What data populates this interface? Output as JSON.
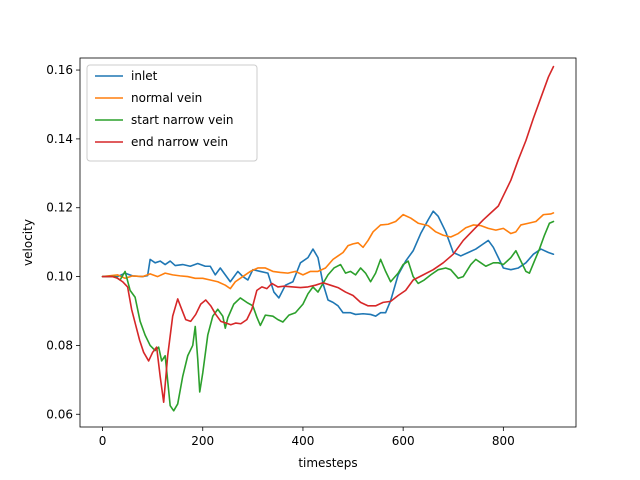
{
  "chart_data": {
    "type": "line",
    "title": "",
    "xlabel": "timesteps",
    "ylabel": "velocity",
    "xlim": [
      -45,
      945
    ],
    "ylim": [
      0.0563,
      0.1635
    ],
    "xticks": [
      0,
      200,
      400,
      600,
      800
    ],
    "xtick_labels": [
      "0",
      "200",
      "400",
      "600",
      "800"
    ],
    "yticks": [
      0.06,
      0.08,
      0.1,
      0.12,
      0.14,
      0.16
    ],
    "ytick_labels": [
      "0.06",
      "0.08",
      "0.10",
      "0.12",
      "0.14",
      "0.16"
    ],
    "grid": false,
    "legend": "top-left",
    "series": [
      {
        "name": "inlet",
        "color": "#1f77b4",
        "points": [
          [
            0,
            0.1
          ],
          [
            30,
            0.1
          ],
          [
            45,
            0.101
          ],
          [
            60,
            0.1002
          ],
          [
            80,
            0.1
          ],
          [
            90,
            0.1003
          ],
          [
            95,
            0.105
          ],
          [
            105,
            0.104
          ],
          [
            115,
            0.1045
          ],
          [
            125,
            0.1035
          ],
          [
            135,
            0.1045
          ],
          [
            145,
            0.1032
          ],
          [
            160,
            0.1035
          ],
          [
            175,
            0.103
          ],
          [
            190,
            0.1038
          ],
          [
            205,
            0.103
          ],
          [
            215,
            0.103
          ],
          [
            225,
            0.1005
          ],
          [
            235,
            0.1025
          ],
          [
            245,
            0.1005
          ],
          [
            255,
            0.0985
          ],
          [
            270,
            0.1015
          ],
          [
            280,
            0.1
          ],
          [
            290,
            0.099
          ],
          [
            300,
            0.102
          ],
          [
            315,
            0.1015
          ],
          [
            330,
            0.101
          ],
          [
            342,
            0.0955
          ],
          [
            352,
            0.0938
          ],
          [
            365,
            0.0975
          ],
          [
            380,
            0.0985
          ],
          [
            395,
            0.104
          ],
          [
            410,
            0.1055
          ],
          [
            420,
            0.108
          ],
          [
            430,
            0.1055
          ],
          [
            440,
            0.098
          ],
          [
            450,
            0.0932
          ],
          [
            460,
            0.0925
          ],
          [
            470,
            0.0915
          ],
          [
            480,
            0.0895
          ],
          [
            495,
            0.0895
          ],
          [
            505,
            0.089
          ],
          [
            520,
            0.0892
          ],
          [
            535,
            0.089
          ],
          [
            545,
            0.0885
          ],
          [
            555,
            0.0895
          ],
          [
            565,
            0.0895
          ],
          [
            575,
            0.093
          ],
          [
            590,
            0.1005
          ],
          [
            605,
            0.1045
          ],
          [
            620,
            0.1075
          ],
          [
            635,
            0.1125
          ],
          [
            650,
            0.1165
          ],
          [
            660,
            0.119
          ],
          [
            670,
            0.1175
          ],
          [
            685,
            0.113
          ],
          [
            700,
            0.107
          ],
          [
            715,
            0.106
          ],
          [
            730,
            0.107
          ],
          [
            745,
            0.108
          ],
          [
            760,
            0.1095
          ],
          [
            770,
            0.1105
          ],
          [
            780,
            0.1085
          ],
          [
            790,
            0.1055
          ],
          [
            800,
            0.1025
          ],
          [
            815,
            0.102
          ],
          [
            830,
            0.1025
          ],
          [
            845,
            0.104
          ],
          [
            860,
            0.1065
          ],
          [
            875,
            0.108
          ],
          [
            890,
            0.107
          ],
          [
            900,
            0.1065
          ]
        ]
      },
      {
        "name": "normal vein",
        "color": "#ff7f0e",
        "points": [
          [
            0,
            0.1
          ],
          [
            30,
            0.1005
          ],
          [
            45,
            0.0995
          ],
          [
            60,
            0.1002
          ],
          [
            80,
            0.1
          ],
          [
            95,
            0.1008
          ],
          [
            110,
            0.1
          ],
          [
            125,
            0.101
          ],
          [
            140,
            0.1005
          ],
          [
            155,
            0.1002
          ],
          [
            170,
            0.1
          ],
          [
            185,
            0.0995
          ],
          [
            200,
            0.0995
          ],
          [
            215,
            0.099
          ],
          [
            230,
            0.0985
          ],
          [
            245,
            0.0975
          ],
          [
            255,
            0.0965
          ],
          [
            265,
            0.0985
          ],
          [
            280,
            0.1
          ],
          [
            295,
            0.1015
          ],
          [
            310,
            0.1025
          ],
          [
            325,
            0.1025
          ],
          [
            340,
            0.1015
          ],
          [
            355,
            0.1012
          ],
          [
            370,
            0.101
          ],
          [
            385,
            0.1015
          ],
          [
            400,
            0.1005
          ],
          [
            415,
            0.1015
          ],
          [
            430,
            0.1015
          ],
          [
            445,
            0.1025
          ],
          [
            460,
            0.105
          ],
          [
            470,
            0.106
          ],
          [
            480,
            0.107
          ],
          [
            490,
            0.109
          ],
          [
            500,
            0.1095
          ],
          [
            510,
            0.1098
          ],
          [
            520,
            0.1085
          ],
          [
            530,
            0.1105
          ],
          [
            540,
            0.113
          ],
          [
            555,
            0.115
          ],
          [
            570,
            0.1152
          ],
          [
            585,
            0.116
          ],
          [
            600,
            0.118
          ],
          [
            615,
            0.117
          ],
          [
            630,
            0.1155
          ],
          [
            650,
            0.1148
          ],
          [
            665,
            0.113
          ],
          [
            680,
            0.112
          ],
          [
            695,
            0.1115
          ],
          [
            710,
            0.1125
          ],
          [
            725,
            0.1142
          ],
          [
            740,
            0.115
          ],
          [
            755,
            0.1148
          ],
          [
            770,
            0.114
          ],
          [
            785,
            0.1135
          ],
          [
            800,
            0.114
          ],
          [
            815,
            0.1125
          ],
          [
            825,
            0.113
          ],
          [
            835,
            0.115
          ],
          [
            850,
            0.1155
          ],
          [
            865,
            0.116
          ],
          [
            880,
            0.118
          ],
          [
            895,
            0.1182
          ],
          [
            900,
            0.1185
          ]
        ]
      },
      {
        "name": "start narrow vein",
        "color": "#2ca02c",
        "points": [
          [
            0,
            0.1
          ],
          [
            25,
            0.1
          ],
          [
            35,
            0.099
          ],
          [
            45,
            0.1015
          ],
          [
            55,
            0.096
          ],
          [
            65,
            0.094
          ],
          [
            75,
            0.087
          ],
          [
            85,
            0.083
          ],
          [
            95,
            0.08
          ],
          [
            105,
            0.0785
          ],
          [
            112,
            0.0795
          ],
          [
            118,
            0.0755
          ],
          [
            125,
            0.077
          ],
          [
            135,
            0.0625
          ],
          [
            142,
            0.061
          ],
          [
            150,
            0.063
          ],
          [
            160,
            0.071
          ],
          [
            170,
            0.077
          ],
          [
            180,
            0.08
          ],
          [
            185,
            0.0855
          ],
          [
            190,
            0.076
          ],
          [
            194,
            0.0665
          ],
          [
            200,
            0.072
          ],
          [
            210,
            0.083
          ],
          [
            220,
            0.0885
          ],
          [
            230,
            0.0905
          ],
          [
            240,
            0.0885
          ],
          [
            245,
            0.085
          ],
          [
            250,
            0.088
          ],
          [
            262,
            0.092
          ],
          [
            275,
            0.0938
          ],
          [
            288,
            0.0925
          ],
          [
            300,
            0.0915
          ],
          [
            308,
            0.0882
          ],
          [
            315,
            0.0858
          ],
          [
            325,
            0.0888
          ],
          [
            340,
            0.0885
          ],
          [
            350,
            0.0875
          ],
          [
            360,
            0.0868
          ],
          [
            372,
            0.0888
          ],
          [
            385,
            0.0895
          ],
          [
            400,
            0.092
          ],
          [
            410,
            0.095
          ],
          [
            420,
            0.097
          ],
          [
            430,
            0.0955
          ],
          [
            440,
            0.098
          ],
          [
            450,
            0.1005
          ],
          [
            462,
            0.1025
          ],
          [
            475,
            0.1035
          ],
          [
            485,
            0.101
          ],
          [
            495,
            0.1015
          ],
          [
            505,
            0.1005
          ],
          [
            515,
            0.1025
          ],
          [
            525,
            0.101
          ],
          [
            535,
            0.0985
          ],
          [
            545,
            0.101
          ],
          [
            555,
            0.105
          ],
          [
            565,
            0.1015
          ],
          [
            575,
            0.0985
          ],
          [
            590,
            0.101
          ],
          [
            600,
            0.1035
          ],
          [
            610,
            0.1045
          ],
          [
            620,
            0.1
          ],
          [
            630,
            0.098
          ],
          [
            642,
            0.099
          ],
          [
            655,
            0.1005
          ],
          [
            670,
            0.102
          ],
          [
            685,
            0.1025
          ],
          [
            695,
            0.102
          ],
          [
            710,
            0.0995
          ],
          [
            720,
            0.1
          ],
          [
            735,
            0.1035
          ],
          [
            745,
            0.105
          ],
          [
            755,
            0.104
          ],
          [
            765,
            0.103
          ],
          [
            780,
            0.104
          ],
          [
            790,
            0.104
          ],
          [
            800,
            0.1035
          ],
          [
            815,
            0.1055
          ],
          [
            825,
            0.1075
          ],
          [
            835,
            0.1045
          ],
          [
            845,
            0.1015
          ],
          [
            852,
            0.101
          ],
          [
            862,
            0.1045
          ],
          [
            872,
            0.108
          ],
          [
            882,
            0.112
          ],
          [
            892,
            0.1155
          ],
          [
            900,
            0.116
          ]
        ]
      },
      {
        "name": "end narrow vein",
        "color": "#d62728",
        "points": [
          [
            0,
            0.1
          ],
          [
            20,
            0.1
          ],
          [
            30,
            0.0995
          ],
          [
            40,
            0.0985
          ],
          [
            50,
            0.097
          ],
          [
            58,
            0.0905
          ],
          [
            66,
            0.086
          ],
          [
            74,
            0.0815
          ],
          [
            82,
            0.078
          ],
          [
            92,
            0.0755
          ],
          [
            100,
            0.078
          ],
          [
            108,
            0.0795
          ],
          [
            115,
            0.071
          ],
          [
            122,
            0.0635
          ],
          [
            130,
            0.077
          ],
          [
            140,
            0.0885
          ],
          [
            150,
            0.0935
          ],
          [
            158,
            0.0905
          ],
          [
            166,
            0.0875
          ],
          [
            176,
            0.087
          ],
          [
            186,
            0.089
          ],
          [
            196,
            0.092
          ],
          [
            206,
            0.0932
          ],
          [
            216,
            0.0915
          ],
          [
            226,
            0.089
          ],
          [
            236,
            0.087
          ],
          [
            246,
            0.0865
          ],
          [
            256,
            0.086
          ],
          [
            266,
            0.0865
          ],
          [
            276,
            0.0863
          ],
          [
            288,
            0.0875
          ],
          [
            298,
            0.0905
          ],
          [
            308,
            0.096
          ],
          [
            318,
            0.097
          ],
          [
            328,
            0.0965
          ],
          [
            338,
            0.098
          ],
          [
            350,
            0.097
          ],
          [
            362,
            0.0972
          ],
          [
            380,
            0.097
          ],
          [
            395,
            0.0968
          ],
          [
            410,
            0.097
          ],
          [
            425,
            0.0975
          ],
          [
            440,
            0.0982
          ],
          [
            455,
            0.0975
          ],
          [
            470,
            0.0968
          ],
          [
            485,
            0.0955
          ],
          [
            500,
            0.0945
          ],
          [
            515,
            0.0925
          ],
          [
            530,
            0.0915
          ],
          [
            545,
            0.0915
          ],
          [
            560,
            0.0925
          ],
          [
            575,
            0.0928
          ],
          [
            590,
            0.0945
          ],
          [
            605,
            0.096
          ],
          [
            620,
            0.099
          ],
          [
            640,
            0.1005
          ],
          [
            660,
            0.102
          ],
          [
            680,
            0.104
          ],
          [
            700,
            0.1065
          ],
          [
            720,
            0.1105
          ],
          [
            740,
            0.1135
          ],
          [
            760,
            0.1165
          ],
          [
            775,
            0.1185
          ],
          [
            790,
            0.1205
          ],
          [
            800,
            0.1235
          ],
          [
            815,
            0.128
          ],
          [
            830,
            0.134
          ],
          [
            845,
            0.1395
          ],
          [
            860,
            0.146
          ],
          [
            875,
            0.152
          ],
          [
            890,
            0.158
          ],
          [
            900,
            0.161
          ]
        ]
      }
    ]
  }
}
